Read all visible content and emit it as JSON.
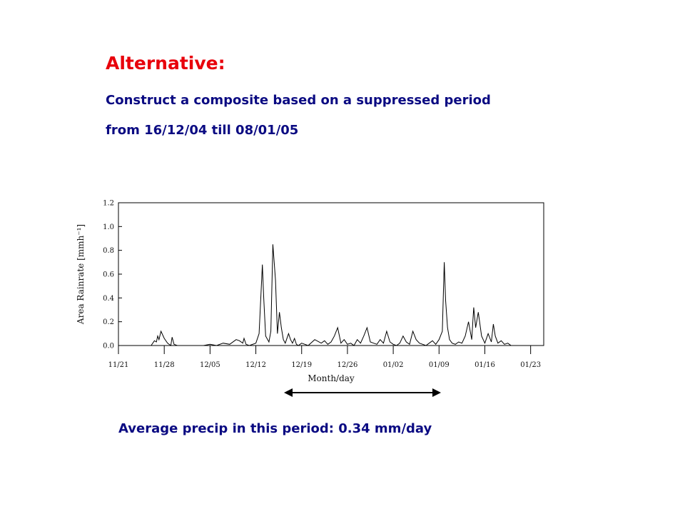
{
  "slide": {
    "title": "Alternative:",
    "line1": "Construct a composite based on a suppressed period",
    "line2": "from 16/12/04 till 08/01/05",
    "average_note": "Average precip in this period: 0.34 mm/day"
  },
  "colors": {
    "title": "#e8000b",
    "text": "#0a0a82",
    "series": "#000000"
  },
  "chart_data": {
    "type": "line",
    "xlabel": "Month/day",
    "ylabel": "Area Rainrate [mmh⁻¹]",
    "x_ticks": [
      "11/21",
      "11/28",
      "12/05",
      "12/12",
      "12/19",
      "12/26",
      "01/02",
      "01/09",
      "01/16",
      "01/23"
    ],
    "y_ticks": [
      "0.0",
      "0.2",
      "0.4",
      "0.6",
      "0.8",
      "1.0",
      "1.2"
    ],
    "ylim": [
      0,
      1.2
    ],
    "xlim_days": [
      0,
      65
    ],
    "x_units": "days since 11/21",
    "grid": false,
    "highlight_period": {
      "start": "12/16",
      "end": "01/08"
    },
    "series": [
      {
        "name": "",
        "x": [
          5,
          5.5,
          5.8,
          6,
          6.2,
          6.5,
          7,
          7.5,
          8,
          8.2,
          8.5,
          9,
          13,
          14,
          15,
          16,
          17,
          18,
          18.5,
          19,
          19.2,
          19.5,
          20,
          21,
          21.5,
          22,
          22.2,
          22.5,
          23,
          23.3,
          23.6,
          24,
          24.3,
          24.6,
          24.9,
          25.2,
          25.5,
          26,
          26.3,
          26.6,
          26.9,
          27.2,
          27.5,
          28,
          28.5,
          29,
          30,
          31,
          31.5,
          32,
          32.5,
          33,
          33.5,
          34,
          34.5,
          35,
          35.5,
          36,
          36.5,
          37,
          37.5,
          38,
          38.5,
          39,
          39.5,
          40,
          40.5,
          41,
          41.5,
          42,
          42.5,
          43,
          43.5,
          44,
          44.5,
          45,
          45.5,
          46,
          46.5,
          47,
          47.5,
          48,
          48.5,
          49,
          49.5,
          49.8,
          50,
          50.3,
          50.6,
          51,
          51.5,
          52,
          52.5,
          53,
          53.5,
          54,
          54.3,
          54.6,
          55,
          55.5,
          56,
          56.5,
          57,
          57.3,
          57.6,
          58,
          58.5,
          59,
          59.5,
          60,
          60.5,
          61,
          62,
          63,
          64,
          65
        ],
        "y": [
          0,
          0.04,
          0.03,
          0.08,
          0.05,
          0.12,
          0.06,
          0.02,
          0,
          0.07,
          0.01,
          0,
          0,
          0.01,
          0,
          0.02,
          0.01,
          0.05,
          0.04,
          0.02,
          0.06,
          0.01,
          0,
          0.02,
          0.1,
          0.68,
          0.4,
          0.08,
          0.03,
          0.12,
          0.85,
          0.55,
          0.1,
          0.28,
          0.15,
          0.05,
          0.02,
          0.1,
          0.05,
          0.02,
          0.06,
          0.01,
          0,
          0.02,
          0.01,
          0,
          0.05,
          0.02,
          0.04,
          0.01,
          0.03,
          0.08,
          0.15,
          0.02,
          0.05,
          0.01,
          0.02,
          0,
          0.05,
          0.02,
          0.08,
          0.15,
          0.03,
          0.02,
          0.01,
          0.05,
          0.02,
          0.12,
          0.03,
          0.01,
          0,
          0.02,
          0.08,
          0.03,
          0.01,
          0.12,
          0.05,
          0.02,
          0.01,
          0,
          0.02,
          0.04,
          0.01,
          0.05,
          0.12,
          0.7,
          0.38,
          0.15,
          0.05,
          0.02,
          0.01,
          0.03,
          0.02,
          0.08,
          0.2,
          0.05,
          0.32,
          0.15,
          0.28,
          0.08,
          0.02,
          0.1,
          0.03,
          0.18,
          0.08,
          0.02,
          0.04,
          0.01,
          0.02,
          0,
          0,
          0,
          0,
          0,
          0,
          0
        ]
      }
    ]
  }
}
